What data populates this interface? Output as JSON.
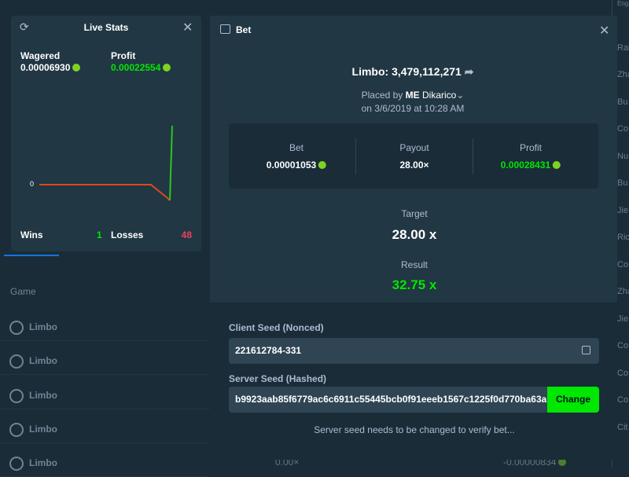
{
  "live_stats": {
    "title": "Live Stats",
    "wagered_label": "Wagered",
    "wagered": "0.00006930",
    "profit_label": "Profit",
    "profit": "0.00022554",
    "zero_label": "0",
    "wins_label": "Wins",
    "wins": "1",
    "losses_label": "Losses",
    "losses": "48"
  },
  "bet_modal": {
    "title": "Bet",
    "game_id": "Limbo: 3,479,112,271",
    "placed_by": "Placed by",
    "user_rank": "ME",
    "username": "Dikarico",
    "date": "on 3/6/2019 at 10:28 AM",
    "summary": [
      {
        "label": "Bet",
        "value": "0.00001053"
      },
      {
        "label": "Payout",
        "value": "28.00×"
      },
      {
        "label": "Profit",
        "value": "0.00028431"
      }
    ],
    "target_label": "Target",
    "target": "28.00 x",
    "result_label": "Result",
    "result": "32.75 x",
    "client_seed_label": "Client Seed (Nonced)",
    "client_seed": "221612784-331",
    "server_seed_label": "Server Seed (Hashed)",
    "server_seed": "b9923aab85f6779ac6c6911c55445bcb0f91eeeb1567c1225f0d770ba63a",
    "change_button": "Change",
    "notice": "Server seed needs to be changed to verify bet..."
  },
  "background": {
    "table_header": "Game",
    "rows": [
      "Limbo",
      "Limbo",
      "Limbo",
      "Limbo",
      "Limbo"
    ],
    "row_payout": "0.00×",
    "row_profit": "-0.00000834",
    "right_fragments": [
      "Eng",
      "Rai",
      "Zha",
      "Bu",
      "Co",
      "Nu",
      "Bu",
      "Jie",
      "Ric",
      "Co",
      "Zha",
      "Jie",
      "Co",
      "Co",
      "Co",
      "Cit"
    ]
  }
}
